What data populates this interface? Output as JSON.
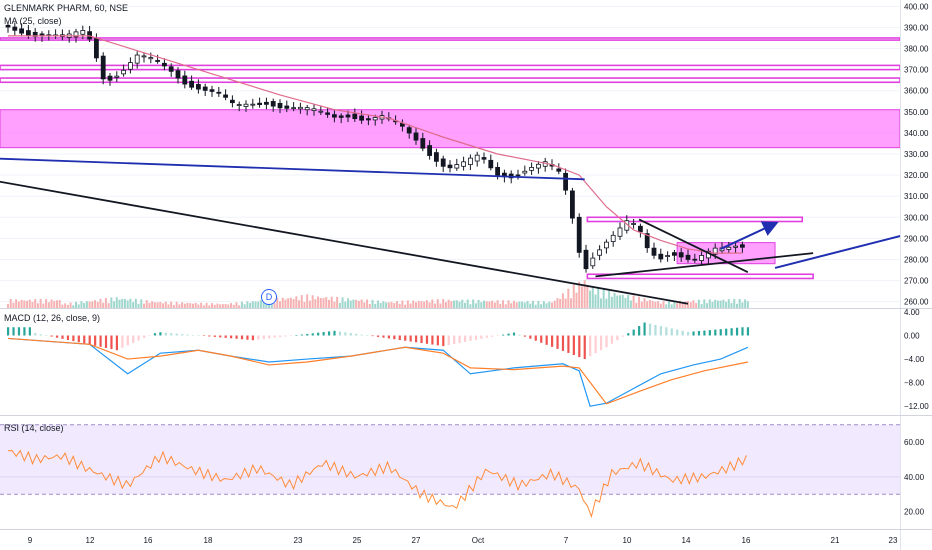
{
  "legend": {
    "symbol_line": "GLENMARK PHARM, 60, NSE",
    "ma_label": "MA (25, close)",
    "macd_label": "MACD (12, 26, close, 9)",
    "rsi_label": "RSI (14, close)",
    "event_badge": "D"
  },
  "colors": {
    "up": "#ffffff",
    "down": "#131722",
    "ma": "#e06c8c",
    "zone_fill": "#ff80ff",
    "zone_line": "#e040e0",
    "trend_blue": "#1f2fb0",
    "trend_black": "#131722",
    "vol_up": "#8fd0c4",
    "vol_down": "#f4a4a4",
    "macd_line": "#2196f3",
    "signal_line": "#ff7f2a",
    "hist_up_strong": "#26a69a",
    "hist_up_weak": "#b2dfdb",
    "hist_down_strong": "#ef5350",
    "hist_down_weak": "#ffcdd2",
    "rsi_line": "#ff8c3a",
    "rsi_band": "#e8dcff"
  },
  "chart_data": [
    {
      "type": "candlestick",
      "title": "GLENMARK PHARM, 60, NSE",
      "x_tick_labels": [
        "9",
        "12",
        "16",
        "18",
        "23",
        "25",
        "27",
        "Oct",
        "7",
        "10",
        "14",
        "16",
        "21",
        "23"
      ],
      "y_tick_labels": [
        "260.00",
        "270.00",
        "280.00",
        "290.00",
        "300.00",
        "310.00",
        "320.00",
        "330.00",
        "340.00",
        "350.00",
        "360.00",
        "370.00",
        "380.00",
        "390.00",
        "400.00"
      ],
      "ylim": [
        257,
        403
      ],
      "close_series": [
        {
          "bar": 0,
          "close": 391
        },
        {
          "bar": 6,
          "close": 389
        },
        {
          "bar": 12,
          "close": 387
        },
        {
          "bar": 18,
          "close": 386
        },
        {
          "bar": 24,
          "close": 385
        },
        {
          "bar": 30,
          "close": 388
        },
        {
          "bar": 33,
          "close": 384
        },
        {
          "bar": 38,
          "close": 365
        },
        {
          "bar": 44,
          "close": 369
        },
        {
          "bar": 50,
          "close": 376
        },
        {
          "bar": 56,
          "close": 374
        },
        {
          "bar": 62,
          "close": 370
        },
        {
          "bar": 68,
          "close": 364
        },
        {
          "bar": 74,
          "close": 361
        },
        {
          "bar": 80,
          "close": 358
        },
        {
          "bar": 86,
          "close": 352
        },
        {
          "bar": 92,
          "close": 354
        },
        {
          "bar": 98,
          "close": 355
        },
        {
          "bar": 104,
          "close": 352
        },
        {
          "bar": 110,
          "close": 351
        },
        {
          "bar": 116,
          "close": 350
        },
        {
          "bar": 122,
          "close": 348
        },
        {
          "bar": 128,
          "close": 349
        },
        {
          "bar": 134,
          "close": 346
        },
        {
          "bar": 140,
          "close": 347
        },
        {
          "bar": 146,
          "close": 344
        },
        {
          "bar": 152,
          "close": 338
        },
        {
          "bar": 158,
          "close": 330
        },
        {
          "bar": 164,
          "close": 323
        },
        {
          "bar": 170,
          "close": 325
        },
        {
          "bar": 176,
          "close": 329
        },
        {
          "bar": 182,
          "close": 321
        },
        {
          "bar": 188,
          "close": 320
        },
        {
          "bar": 194,
          "close": 323
        },
        {
          "bar": 200,
          "close": 325
        },
        {
          "bar": 206,
          "close": 320
        },
        {
          "bar": 210,
          "close": 300
        },
        {
          "bar": 214,
          "close": 275
        },
        {
          "bar": 218,
          "close": 283
        },
        {
          "bar": 222,
          "close": 288
        },
        {
          "bar": 226,
          "close": 292
        },
        {
          "bar": 230,
          "close": 297
        },
        {
          "bar": 234,
          "close": 295
        },
        {
          "bar": 238,
          "close": 284
        },
        {
          "bar": 242,
          "close": 281
        },
        {
          "bar": 246,
          "close": 284
        },
        {
          "bar": 250,
          "close": 282
        },
        {
          "bar": 254,
          "close": 279
        },
        {
          "bar": 258,
          "close": 281
        },
        {
          "bar": 262,
          "close": 284
        },
        {
          "bar": 266,
          "close": 285
        },
        {
          "bar": 270,
          "close": 287
        }
      ],
      "ma_period": 25,
      "ma_series": [
        {
          "bar": 0,
          "value": 386
        },
        {
          "bar": 30,
          "value": 386
        },
        {
          "bar": 40,
          "value": 382
        },
        {
          "bar": 60,
          "value": 374
        },
        {
          "bar": 80,
          "value": 366
        },
        {
          "bar": 100,
          "value": 358
        },
        {
          "bar": 120,
          "value": 351
        },
        {
          "bar": 140,
          "value": 347
        },
        {
          "bar": 160,
          "value": 338
        },
        {
          "bar": 180,
          "value": 330
        },
        {
          "bar": 200,
          "value": 325
        },
        {
          "bar": 210,
          "value": 320
        },
        {
          "bar": 220,
          "value": 305
        },
        {
          "bar": 230,
          "value": 294
        },
        {
          "bar": 240,
          "value": 289
        },
        {
          "bar": 250,
          "value": 285
        },
        {
          "bar": 260,
          "value": 283
        },
        {
          "bar": 270,
          "value": 283
        }
      ],
      "volume_series": [
        {
          "bar": 20,
          "vol": 2
        },
        {
          "bar": 40,
          "vol": 5
        },
        {
          "bar": 55,
          "vol": 3
        },
        {
          "bar": 80,
          "vol": 2
        },
        {
          "bar": 110,
          "vol": 6
        },
        {
          "bar": 140,
          "vol": 3
        },
        {
          "bar": 160,
          "vol": 4
        },
        {
          "bar": 200,
          "vol": 3
        },
        {
          "bar": 212,
          "vol": 14
        },
        {
          "bar": 214,
          "vol": 10
        },
        {
          "bar": 220,
          "vol": 8
        },
        {
          "bar": 240,
          "vol": 3
        },
        {
          "bar": 260,
          "vol": 4
        }
      ],
      "zones": [
        {
          "label": "thin resistance line",
          "low": 384,
          "high": 385
        },
        {
          "label": "thin resistance band",
          "low": 370,
          "high": 372
        },
        {
          "label": "thin resistance band",
          "low": 364,
          "high": 366
        },
        {
          "label": "supply zone",
          "low": 333,
          "high": 351
        },
        {
          "label": "resistance line",
          "low": 298,
          "high": 300
        },
        {
          "label": "consolidation box",
          "low": 278,
          "high": 288
        },
        {
          "label": "support line",
          "low": 271,
          "high": 273
        }
      ],
      "trendlines": [
        {
          "color": "trend_blue",
          "from": {
            "bar": -8,
            "price": 328
          },
          "to": {
            "bar": 212,
            "price": 318
          }
        },
        {
          "color": "trend_black",
          "from": {
            "bar": -8,
            "price": 318
          },
          "to": {
            "bar": 250,
            "price": 259
          }
        },
        {
          "color": "trend_black",
          "from": {
            "bar": 232,
            "price": 299
          },
          "to": {
            "bar": 272,
            "price": 274
          }
        },
        {
          "color": "trend_black",
          "from": {
            "bar": 216,
            "price": 272
          },
          "to": {
            "bar": 296,
            "price": 283
          }
        }
      ],
      "projection_arrows": [
        {
          "color": "trend_blue",
          "from": {
            "bar": 262,
            "price": 285
          },
          "to": {
            "bar": 282,
            "price": 297
          }
        },
        {
          "color": "trend_blue",
          "from": {
            "bar": 282,
            "price": 276
          },
          "to": {
            "bar": 352,
            "price": 299
          }
        }
      ]
    },
    {
      "type": "line",
      "title": "MACD (12, 26, close, 9)",
      "y_tick_labels": [
        "4.00",
        "0.00",
        "−4.00",
        "−8.00",
        "−12.00"
      ],
      "ylim": [
        -13.5,
        4.5
      ],
      "series": [
        {
          "name": "macd",
          "values": [
            {
              "bar": 0,
              "v": -0.5
            },
            {
              "bar": 30,
              "v": -1.5
            },
            {
              "bar": 44,
              "v": -6.5
            },
            {
              "bar": 56,
              "v": -3
            },
            {
              "bar": 70,
              "v": -2.5
            },
            {
              "bar": 82,
              "v": -3.5
            },
            {
              "bar": 96,
              "v": -4.5
            },
            {
              "bar": 110,
              "v": -4
            },
            {
              "bar": 126,
              "v": -3.5
            },
            {
              "bar": 146,
              "v": -2
            },
            {
              "bar": 160,
              "v": -2.5
            },
            {
              "bar": 170,
              "v": -6.5
            },
            {
              "bar": 186,
              "v": -5.5
            },
            {
              "bar": 204,
              "v": -4.8
            },
            {
              "bar": 210,
              "v": -6
            },
            {
              "bar": 214,
              "v": -12
            },
            {
              "bar": 220,
              "v": -11.5
            },
            {
              "bar": 230,
              "v": -9
            },
            {
              "bar": 240,
              "v": -6.5
            },
            {
              "bar": 252,
              "v": -5
            },
            {
              "bar": 262,
              "v": -4
            },
            {
              "bar": 272,
              "v": -2
            }
          ]
        },
        {
          "name": "signal",
          "values": [
            {
              "bar": 0,
              "v": -0.5
            },
            {
              "bar": 30,
              "v": -1.5
            },
            {
              "bar": 44,
              "v": -4
            },
            {
              "bar": 56,
              "v": -3.5
            },
            {
              "bar": 70,
              "v": -2.5
            },
            {
              "bar": 82,
              "v": -3.5
            },
            {
              "bar": 96,
              "v": -5
            },
            {
              "bar": 110,
              "v": -4.5
            },
            {
              "bar": 126,
              "v": -3.5
            },
            {
              "bar": 146,
              "v": -2
            },
            {
              "bar": 160,
              "v": -3
            },
            {
              "bar": 170,
              "v": -5.5
            },
            {
              "bar": 186,
              "v": -5.8
            },
            {
              "bar": 204,
              "v": -5.2
            },
            {
              "bar": 210,
              "v": -5.5
            },
            {
              "bar": 220,
              "v": -11.6
            },
            {
              "bar": 232,
              "v": -9.5
            },
            {
              "bar": 244,
              "v": -7.5
            },
            {
              "bar": 256,
              "v": -6
            },
            {
              "bar": 272,
              "v": -4.5
            }
          ]
        }
      ],
      "histogram": [
        {
          "bar": 10,
          "v": 0.4
        },
        {
          "bar": 40,
          "v": -2.5
        },
        {
          "bar": 55,
          "v": 0.6
        },
        {
          "bar": 90,
          "v": -0.8
        },
        {
          "bar": 120,
          "v": 0.8
        },
        {
          "bar": 160,
          "v": -1.8
        },
        {
          "bar": 186,
          "v": 0.5
        },
        {
          "bar": 212,
          "v": -4
        },
        {
          "bar": 220,
          "v": -2
        },
        {
          "bar": 234,
          "v": 2.2
        },
        {
          "bar": 250,
          "v": 0.6
        },
        {
          "bar": 270,
          "v": 1.4
        }
      ]
    },
    {
      "type": "line",
      "title": "RSI (14, close)",
      "y_tick_labels": [
        "60.00",
        "40.00",
        "20.00"
      ],
      "ylim": [
        10,
        75
      ],
      "bands": {
        "upper": 70,
        "lower": 30
      },
      "series": [
        {
          "name": "rsi",
          "values": [
            {
              "bar": 0,
              "v": 55
            },
            {
              "bar": 10,
              "v": 50
            },
            {
              "bar": 20,
              "v": 52
            },
            {
              "bar": 30,
              "v": 44
            },
            {
              "bar": 44,
              "v": 35
            },
            {
              "bar": 56,
              "v": 52
            },
            {
              "bar": 68,
              "v": 44
            },
            {
              "bar": 80,
              "v": 38
            },
            {
              "bar": 92,
              "v": 45
            },
            {
              "bar": 104,
              "v": 35
            },
            {
              "bar": 116,
              "v": 48
            },
            {
              "bar": 128,
              "v": 40
            },
            {
              "bar": 140,
              "v": 46
            },
            {
              "bar": 152,
              "v": 30
            },
            {
              "bar": 164,
              "v": 22
            },
            {
              "bar": 176,
              "v": 44
            },
            {
              "bar": 188,
              "v": 35
            },
            {
              "bar": 200,
              "v": 42
            },
            {
              "bar": 210,
              "v": 33
            },
            {
              "bar": 214,
              "v": 18
            },
            {
              "bar": 222,
              "v": 42
            },
            {
              "bar": 232,
              "v": 48
            },
            {
              "bar": 244,
              "v": 38
            },
            {
              "bar": 256,
              "v": 40
            },
            {
              "bar": 266,
              "v": 46
            },
            {
              "bar": 272,
              "v": 51
            }
          ]
        }
      ]
    }
  ]
}
